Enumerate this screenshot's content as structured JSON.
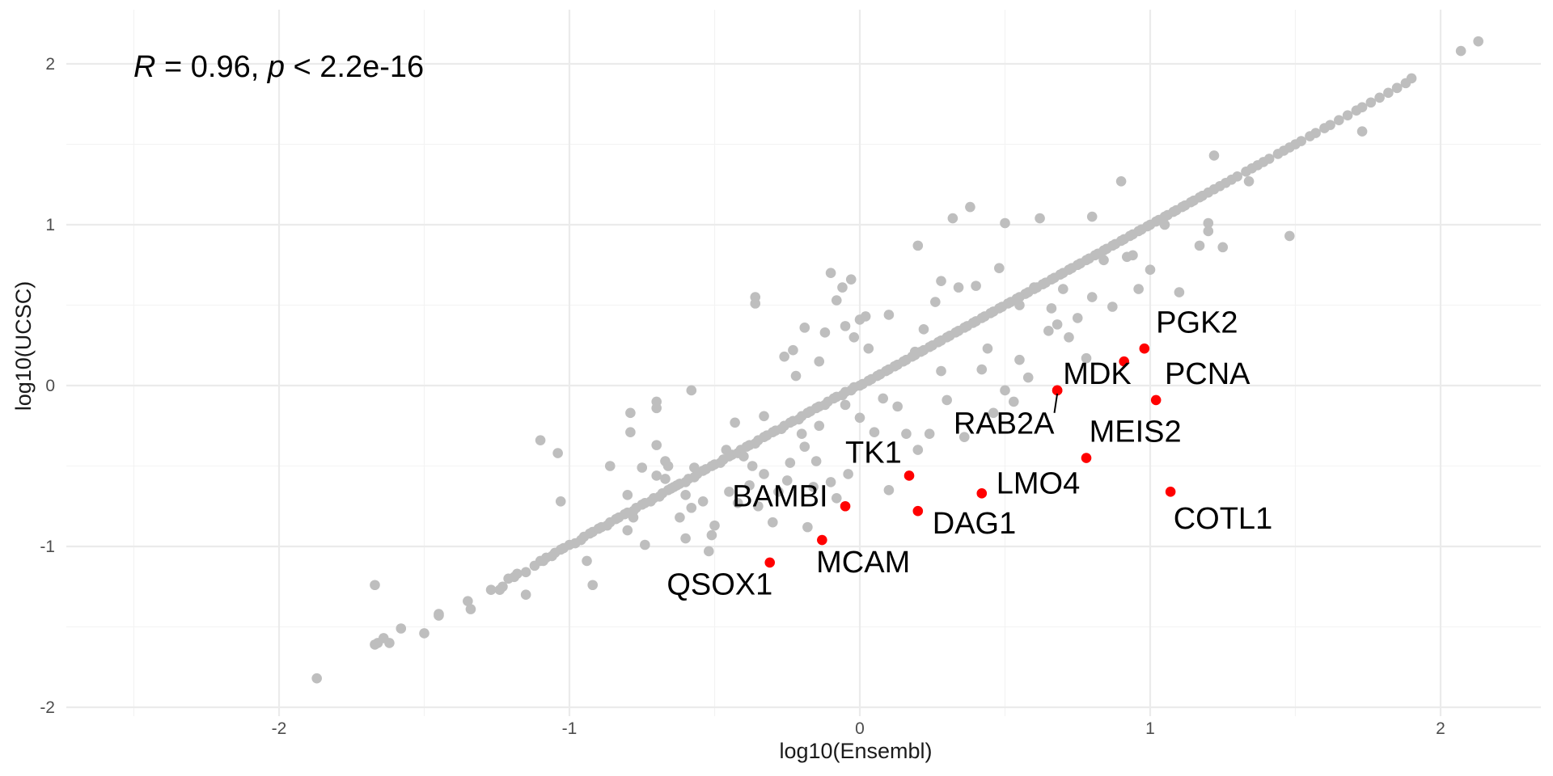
{
  "chart_data": {
    "type": "scatter",
    "title": "",
    "xlabel": "log10(Ensembl)",
    "ylabel": "log10(UCSC)",
    "xlim": [
      -2.7,
      2.3
    ],
    "ylim": [
      -2.05,
      2.35
    ],
    "x_ticks": [
      -2,
      -1,
      0,
      1,
      2
    ],
    "y_ticks": [
      -2,
      -1,
      0,
      1,
      2
    ],
    "x_tick_labels": [
      "-2",
      "-1",
      "0",
      "1",
      "2"
    ],
    "y_tick_labels": [
      "-2",
      "-1",
      "0",
      "1",
      "2"
    ],
    "grid": true,
    "legend": "none",
    "annotation": {
      "r_symbol": "R",
      "r_text": " = 0.96, ",
      "p_symbol": "p",
      "p_text": " < 2.2e-16"
    },
    "colors": {
      "background_points": "#bebebe",
      "highlight_points": "#ff0000"
    },
    "background_points": [
      [
        -1.87,
        -1.82
      ],
      [
        -1.67,
        -1.24
      ],
      [
        -1.67,
        -1.61
      ],
      [
        -1.66,
        -1.6
      ],
      [
        -1.64,
        -1.57
      ],
      [
        -1.62,
        -1.6
      ],
      [
        -1.58,
        -1.51
      ],
      [
        -1.5,
        -1.54
      ],
      [
        -1.45,
        -1.42
      ],
      [
        -1.45,
        -1.43
      ],
      [
        -1.35,
        -1.34
      ],
      [
        -1.34,
        -1.39
      ],
      [
        -1.27,
        -1.27
      ],
      [
        -1.24,
        -1.27
      ],
      [
        -1.23,
        -1.25
      ],
      [
        -1.21,
        -1.2
      ],
      [
        -1.19,
        -1.19
      ],
      [
        -1.18,
        -1.17
      ],
      [
        -1.15,
        -1.3
      ],
      [
        -1.15,
        -1.16
      ],
      [
        -1.12,
        -1.12
      ],
      [
        -1.1,
        -1.09
      ],
      [
        -1.09,
        -1.09
      ],
      [
        -1.08,
        -1.07
      ],
      [
        -1.06,
        -1.06
      ],
      [
        -1.05,
        -1.04
      ],
      [
        -1.03,
        -1.02
      ],
      [
        -1.02,
        -1.01
      ],
      [
        -1.0,
        -0.99
      ],
      [
        -0.98,
        -0.98
      ],
      [
        -0.96,
        -0.96
      ],
      [
        -0.95,
        -0.94
      ],
      [
        -0.93,
        -0.92
      ],
      [
        -0.92,
        -0.91
      ],
      [
        -0.9,
        -0.89
      ],
      [
        -0.89,
        -0.88
      ],
      [
        -0.87,
        -0.87
      ],
      [
        -0.86,
        -0.85
      ],
      [
        -0.84,
        -0.83
      ],
      [
        -0.83,
        -0.82
      ],
      [
        -0.81,
        -0.8
      ],
      [
        -0.8,
        -0.79
      ],
      [
        -0.78,
        -0.78
      ],
      [
        -0.77,
        -0.76
      ],
      [
        -0.75,
        -0.74
      ],
      [
        -0.74,
        -0.73
      ],
      [
        -0.72,
        -0.72
      ],
      [
        -0.71,
        -0.7
      ],
      [
        -0.69,
        -0.69
      ],
      [
        -0.68,
        -0.67
      ],
      [
        -0.66,
        -0.65
      ],
      [
        -0.65,
        -0.64
      ],
      [
        -0.63,
        -0.62
      ],
      [
        -0.62,
        -0.61
      ],
      [
        -0.6,
        -0.6
      ],
      [
        -0.59,
        -0.58
      ],
      [
        -0.57,
        -0.57
      ],
      [
        -0.56,
        -0.55
      ],
      [
        -0.54,
        -0.53
      ],
      [
        -0.53,
        -0.52
      ],
      [
        -0.51,
        -0.5
      ],
      [
        -0.5,
        -0.49
      ],
      [
        -0.48,
        -0.48
      ],
      [
        -0.47,
        -0.46
      ],
      [
        -0.45,
        -0.44
      ],
      [
        -0.44,
        -0.43
      ],
      [
        -0.42,
        -0.42
      ],
      [
        -0.41,
        -0.4
      ],
      [
        -0.39,
        -0.38
      ],
      [
        -0.38,
        -0.37
      ],
      [
        -0.36,
        -0.36
      ],
      [
        -0.35,
        -0.34
      ],
      [
        -0.33,
        -0.32
      ],
      [
        -0.32,
        -0.31
      ],
      [
        -0.3,
        -0.29
      ],
      [
        -0.29,
        -0.28
      ],
      [
        -0.27,
        -0.27
      ],
      [
        -0.26,
        -0.25
      ],
      [
        -0.24,
        -0.23
      ],
      [
        -0.23,
        -0.22
      ],
      [
        -0.21,
        -0.21
      ],
      [
        -0.2,
        -0.19
      ],
      [
        -0.18,
        -0.17
      ],
      [
        -0.17,
        -0.16
      ],
      [
        -0.15,
        -0.14
      ],
      [
        -0.14,
        -0.13
      ],
      [
        -0.12,
        -0.12
      ],
      [
        -0.11,
        -0.1
      ],
      [
        -0.09,
        -0.08
      ],
      [
        -0.08,
        -0.07
      ],
      [
        -0.06,
        -0.06
      ],
      [
        -0.05,
        -0.04
      ],
      [
        -0.03,
        -0.03
      ],
      [
        -0.02,
        -0.01
      ],
      [
        0.0,
        0.0
      ],
      [
        0.01,
        0.01
      ],
      [
        0.03,
        0.03
      ],
      [
        0.04,
        0.04
      ],
      [
        0.06,
        0.06
      ],
      [
        0.07,
        0.07
      ],
      [
        0.09,
        0.09
      ],
      [
        0.1,
        0.1
      ],
      [
        0.12,
        0.12
      ],
      [
        0.13,
        0.13
      ],
      [
        0.15,
        0.15
      ],
      [
        0.16,
        0.16
      ],
      [
        0.18,
        0.18
      ],
      [
        0.19,
        0.19
      ],
      [
        0.21,
        0.21
      ],
      [
        0.22,
        0.22
      ],
      [
        0.24,
        0.24
      ],
      [
        0.25,
        0.25
      ],
      [
        0.27,
        0.27
      ],
      [
        0.28,
        0.28
      ],
      [
        0.3,
        0.3
      ],
      [
        0.31,
        0.31
      ],
      [
        0.33,
        0.33
      ],
      [
        0.34,
        0.34
      ],
      [
        0.36,
        0.36
      ],
      [
        0.37,
        0.37
      ],
      [
        0.39,
        0.39
      ],
      [
        0.4,
        0.4
      ],
      [
        0.42,
        0.42
      ],
      [
        0.43,
        0.43
      ],
      [
        0.45,
        0.45
      ],
      [
        0.46,
        0.46
      ],
      [
        0.48,
        0.48
      ],
      [
        0.49,
        0.49
      ],
      [
        0.51,
        0.51
      ],
      [
        0.52,
        0.52
      ],
      [
        0.54,
        0.54
      ],
      [
        0.55,
        0.55
      ],
      [
        0.57,
        0.57
      ],
      [
        0.58,
        0.58
      ],
      [
        0.6,
        0.6
      ],
      [
        0.61,
        0.61
      ],
      [
        0.63,
        0.63
      ],
      [
        0.64,
        0.64
      ],
      [
        0.66,
        0.66
      ],
      [
        0.67,
        0.67
      ],
      [
        0.69,
        0.69
      ],
      [
        0.7,
        0.7
      ],
      [
        0.72,
        0.72
      ],
      [
        0.73,
        0.73
      ],
      [
        0.75,
        0.75
      ],
      [
        0.76,
        0.76
      ],
      [
        0.78,
        0.78
      ],
      [
        0.79,
        0.79
      ],
      [
        0.81,
        0.81
      ],
      [
        0.82,
        0.82
      ],
      [
        0.84,
        0.84
      ],
      [
        0.85,
        0.85
      ],
      [
        0.87,
        0.87
      ],
      [
        0.88,
        0.88
      ],
      [
        0.9,
        0.9
      ],
      [
        0.91,
        0.91
      ],
      [
        0.93,
        0.93
      ],
      [
        0.94,
        0.94
      ],
      [
        0.96,
        0.96
      ],
      [
        0.97,
        0.97
      ],
      [
        0.99,
        0.99
      ],
      [
        1.0,
        1.0
      ],
      [
        1.02,
        1.02
      ],
      [
        1.03,
        1.03
      ],
      [
        1.05,
        1.05
      ],
      [
        1.06,
        1.06
      ],
      [
        1.08,
        1.08
      ],
      [
        1.09,
        1.09
      ],
      [
        1.11,
        1.11
      ],
      [
        1.12,
        1.12
      ],
      [
        1.14,
        1.14
      ],
      [
        1.15,
        1.15
      ],
      [
        1.17,
        1.17
      ],
      [
        1.18,
        1.18
      ],
      [
        1.2,
        1.2
      ],
      [
        1.22,
        1.22
      ],
      [
        1.24,
        1.24
      ],
      [
        1.26,
        1.26
      ],
      [
        1.28,
        1.28
      ],
      [
        1.3,
        1.3
      ],
      [
        1.33,
        1.33
      ],
      [
        1.35,
        1.35
      ],
      [
        1.37,
        1.37
      ],
      [
        1.39,
        1.39
      ],
      [
        1.41,
        1.41
      ],
      [
        1.44,
        1.44
      ],
      [
        1.46,
        1.46
      ],
      [
        1.48,
        1.48
      ],
      [
        1.5,
        1.5
      ],
      [
        1.52,
        1.52
      ],
      [
        1.55,
        1.55
      ],
      [
        1.57,
        1.57
      ],
      [
        1.6,
        1.6
      ],
      [
        1.62,
        1.62
      ],
      [
        1.65,
        1.65
      ],
      [
        1.68,
        1.68
      ],
      [
        1.71,
        1.71
      ],
      [
        1.73,
        1.73
      ],
      [
        1.76,
        1.76
      ],
      [
        1.79,
        1.79
      ],
      [
        1.82,
        1.82
      ],
      [
        1.85,
        1.85
      ],
      [
        1.88,
        1.88
      ],
      [
        1.9,
        1.91
      ],
      [
        2.07,
        2.08
      ],
      [
        2.13,
        2.14
      ],
      [
        -1.1,
        -0.34
      ],
      [
        -1.04,
        -0.42
      ],
      [
        -1.03,
        -0.72
      ],
      [
        -0.94,
        -1.09
      ],
      [
        -0.92,
        -1.24
      ],
      [
        -0.86,
        -0.5
      ],
      [
        -0.8,
        -0.68
      ],
      [
        -0.8,
        -0.9
      ],
      [
        -0.79,
        -0.17
      ],
      [
        -0.79,
        -0.29
      ],
      [
        -0.78,
        -0.82
      ],
      [
        -0.75,
        -0.51
      ],
      [
        -0.74,
        -0.99
      ],
      [
        -0.7,
        -0.1
      ],
      [
        -0.7,
        -0.14
      ],
      [
        -0.7,
        -0.37
      ],
      [
        -0.7,
        -0.56
      ],
      [
        -0.67,
        -0.47
      ],
      [
        -0.67,
        -0.58
      ],
      [
        -0.66,
        -0.5
      ],
      [
        -0.64,
        -0.63
      ],
      [
        -0.62,
        -0.82
      ],
      [
        -0.6,
        -0.68
      ],
      [
        -0.6,
        -0.95
      ],
      [
        -0.58,
        -0.03
      ],
      [
        -0.58,
        -0.76
      ],
      [
        -0.57,
        -0.51
      ],
      [
        -0.54,
        -0.72
      ],
      [
        -0.52,
        -1.03
      ],
      [
        -0.51,
        -0.93
      ],
      [
        -0.5,
        -0.87
      ],
      [
        -0.47,
        -0.46
      ],
      [
        -0.46,
        -0.4
      ],
      [
        -0.45,
        -0.66
      ],
      [
        -0.43,
        -0.23
      ],
      [
        -0.42,
        -0.73
      ],
      [
        -0.4,
        -0.44
      ],
      [
        -0.38,
        -0.62
      ],
      [
        -0.37,
        -0.5
      ],
      [
        -0.36,
        0.55
      ],
      [
        -0.36,
        0.51
      ],
      [
        -0.35,
        -0.75
      ],
      [
        -0.33,
        -0.19
      ],
      [
        -0.33,
        -0.55
      ],
      [
        -0.3,
        -0.85
      ],
      [
        -0.28,
        -0.66
      ],
      [
        -0.26,
        0.18
      ],
      [
        -0.25,
        -0.59
      ],
      [
        -0.24,
        -0.48
      ],
      [
        -0.23,
        0.22
      ],
      [
        -0.22,
        0.06
      ],
      [
        -0.2,
        -0.3
      ],
      [
        -0.19,
        0.36
      ],
      [
        -0.19,
        -0.38
      ],
      [
        -0.18,
        -0.88
      ],
      [
        -0.16,
        -0.63
      ],
      [
        -0.15,
        -0.47
      ],
      [
        -0.14,
        -0.25
      ],
      [
        -0.14,
        0.15
      ],
      [
        -0.12,
        0.33
      ],
      [
        -0.1,
        0.7
      ],
      [
        -0.1,
        -0.6
      ],
      [
        -0.08,
        0.53
      ],
      [
        -0.08,
        -0.7
      ],
      [
        -0.06,
        0.61
      ],
      [
        -0.05,
        -0.12
      ],
      [
        -0.05,
        0.37
      ],
      [
        -0.04,
        -0.55
      ],
      [
        -0.03,
        0.66
      ],
      [
        -0.02,
        0.3
      ],
      [
        0.0,
        0.41
      ],
      [
        0.0,
        -0.2
      ],
      [
        0.02,
        0.43
      ],
      [
        0.03,
        0.23
      ],
      [
        0.05,
        -0.29
      ],
      [
        0.08,
        -0.08
      ],
      [
        0.1,
        0.44
      ],
      [
        0.1,
        -0.65
      ],
      [
        0.12,
        0.12
      ],
      [
        0.13,
        -0.13
      ],
      [
        0.16,
        -0.3
      ],
      [
        0.19,
        0.21
      ],
      [
        0.2,
        0.87
      ],
      [
        0.2,
        -0.4
      ],
      [
        0.22,
        0.35
      ],
      [
        0.24,
        -0.3
      ],
      [
        0.26,
        0.52
      ],
      [
        0.28,
        0.65
      ],
      [
        0.28,
        0.09
      ],
      [
        0.3,
        -0.09
      ],
      [
        0.32,
        1.04
      ],
      [
        0.34,
        0.61
      ],
      [
        0.36,
        -0.32
      ],
      [
        0.38,
        1.11
      ],
      [
        0.4,
        0.62
      ],
      [
        0.42,
        0.1
      ],
      [
        0.44,
        0.23
      ],
      [
        0.46,
        -0.17
      ],
      [
        0.48,
        0.73
      ],
      [
        0.5,
        1.01
      ],
      [
        0.5,
        -0.03
      ],
      [
        0.53,
        -0.1
      ],
      [
        0.55,
        0.5
      ],
      [
        0.55,
        0.16
      ],
      [
        0.58,
        0.05
      ],
      [
        0.6,
        0.61
      ],
      [
        0.62,
        1.04
      ],
      [
        0.65,
        0.34
      ],
      [
        0.66,
        0.48
      ],
      [
        0.68,
        0.38
      ],
      [
        0.7,
        0.6
      ],
      [
        0.72,
        0.3
      ],
      [
        0.75,
        0.42
      ],
      [
        0.78,
        0.17
      ],
      [
        0.8,
        0.55
      ],
      [
        0.8,
        1.05
      ],
      [
        0.84,
        0.78
      ],
      [
        0.87,
        0.49
      ],
      [
        0.9,
        1.27
      ],
      [
        0.92,
        0.8
      ],
      [
        0.94,
        0.81
      ],
      [
        0.96,
        0.6
      ],
      [
        1.0,
        0.72
      ],
      [
        1.05,
        1.0
      ],
      [
        1.1,
        0.58
      ],
      [
        1.17,
        0.87
      ],
      [
        1.2,
        0.96
      ],
      [
        1.2,
        1.01
      ],
      [
        1.22,
        1.43
      ],
      [
        1.25,
        0.86
      ],
      [
        1.34,
        1.27
      ],
      [
        1.48,
        0.93
      ],
      [
        1.73,
        1.58
      ],
      [
        1.85,
        1.85
      ]
    ],
    "highlight_points": [
      {
        "name": "PGK2",
        "x": 0.98,
        "y": 0.23
      },
      {
        "name": "",
        "x": 0.91,
        "y": 0.15
      },
      {
        "name": "MDK",
        "x": 0.68,
        "y": -0.03
      },
      {
        "name": "PCNA",
        "x": 1.02,
        "y": -0.09
      },
      {
        "name": "RAB2A",
        "x": 0.68,
        "y": -0.03
      },
      {
        "name": "MEIS2",
        "x": 0.78,
        "y": -0.45
      },
      {
        "name": "TK1",
        "x": 0.17,
        "y": -0.56
      },
      {
        "name": "LMO4",
        "x": 0.42,
        "y": -0.67
      },
      {
        "name": "COTL1",
        "x": 1.07,
        "y": -0.66
      },
      {
        "name": "BAMBI",
        "x": -0.05,
        "y": -0.75
      },
      {
        "name": "DAG1",
        "x": 0.2,
        "y": -0.78
      },
      {
        "name": "MCAM",
        "x": -0.13,
        "y": -0.96
      },
      {
        "name": "QSOX1",
        "x": -0.31,
        "y": -1.1
      }
    ],
    "point_labels": [
      {
        "text": "PGK2",
        "x": 1.02,
        "y": 0.33,
        "anchor": "start"
      },
      {
        "text": "MDK",
        "x": 0.7,
        "y": 0.01,
        "anchor": "start"
      },
      {
        "text": "PCNA",
        "x": 1.05,
        "y": 0.01,
        "anchor": "start"
      },
      {
        "text": "RAB2A",
        "x": 0.67,
        "y": -0.3,
        "anchor": "end"
      },
      {
        "text": "MEIS2",
        "x": 0.79,
        "y": -0.35,
        "anchor": "start"
      },
      {
        "text": "TK1",
        "x": -0.05,
        "y": -0.48,
        "anchor": "start"
      },
      {
        "text": "LMO4",
        "x": 0.47,
        "y": -0.67,
        "anchor": "start"
      },
      {
        "text": "COTL1",
        "x": 1.08,
        "y": -0.89,
        "anchor": "start"
      },
      {
        "text": "BAMBI",
        "x": -0.11,
        "y": -0.75,
        "anchor": "end"
      },
      {
        "text": "DAG1",
        "x": 0.25,
        "y": -0.92,
        "anchor": "start"
      },
      {
        "text": "MCAM",
        "x": -0.15,
        "y": -1.16,
        "anchor": "start"
      },
      {
        "text": "QSOX1",
        "x": -0.3,
        "y": -1.3,
        "anchor": "end"
      }
    ]
  }
}
